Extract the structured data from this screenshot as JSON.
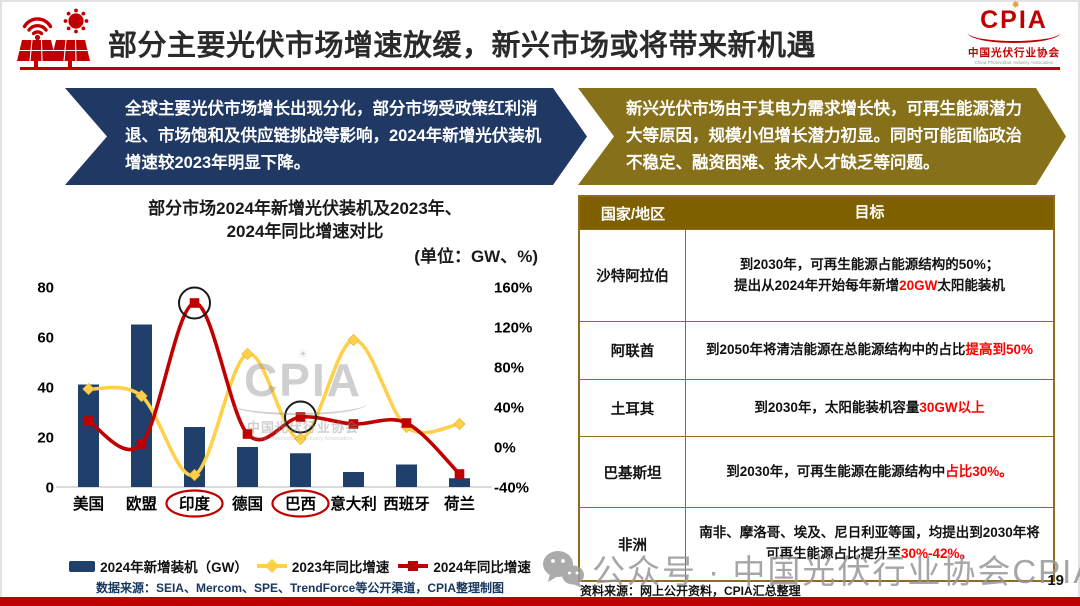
{
  "header": {
    "title": "部分主要光伏市场增速放缓，新兴市场或将带来新机遇",
    "logo": {
      "acronym": "CPIA",
      "org_cn": "中国光伏行业协会",
      "org_en": "China Photovoltaic Industry Association",
      "sun": "✹"
    }
  },
  "callouts": {
    "left": "全球主要光伏市场增长出现分化，部分市场受政策红利消退、市场饱和及供应链挑战等影响，2024年新增光伏装机增速较2023年明显下降。",
    "right": "新兴光伏市场由于其电力需求增长快，可再生能源潜力大等原因，规模小但增长潜力初显。同时可能面临政治不稳定、融资困难、技术人才缺乏等问题。"
  },
  "chart": {
    "title_line1": "部分市场2024年新增光伏装机及2023年、",
    "title_line2": "2024年同比增速对比",
    "unit_label": "(单位：GW、%)",
    "source": "数据来源：SEIA、Mercom、SPE、TrendForce等公开渠道，CPIA整理制图",
    "legend": [
      {
        "label": "2024年新增装机（GW）",
        "type": "bar",
        "color": "#20406B"
      },
      {
        "label": "2023年同比增速",
        "type": "line-diamond",
        "color": "#FFD04A"
      },
      {
        "label": "2024年同比增速",
        "type": "line-square",
        "color": "#C00000"
      }
    ]
  },
  "chart_data": {
    "type": "bar+line",
    "categories": [
      "美国",
      "欧盟",
      "印度",
      "德国",
      "巴西",
      "意大利",
      "西班牙",
      "荷兰"
    ],
    "bars": {
      "name": "2024年新增装机（GW）",
      "axis": "left",
      "color": "#20406B",
      "values": [
        41,
        65,
        24,
        16,
        13.5,
        6,
        9,
        3.5
      ]
    },
    "series": [
      {
        "name": "2023年同比增速",
        "axis": "right",
        "color": "#FFD04A",
        "marker": "diamond",
        "values": [
          58,
          51,
          -28,
          93,
          8,
          107,
          20,
          23
        ]
      },
      {
        "name": "2024年同比增速",
        "axis": "right",
        "color": "#C00000",
        "marker": "square",
        "values": [
          26,
          3,
          144,
          13,
          30,
          23,
          24,
          -27
        ]
      }
    ],
    "left_axis": {
      "min": 0,
      "max": 80,
      "ticks": [
        0,
        20,
        40,
        60,
        80
      ]
    },
    "right_axis": {
      "min": -40,
      "max": 160,
      "tick_values": [
        -40,
        0,
        40,
        80,
        120,
        160
      ],
      "suffix": "%"
    },
    "grid": false,
    "legend_position": "bottom",
    "circled_points": [
      {
        "series": 1,
        "index": 2
      },
      {
        "series": 1,
        "index": 4
      }
    ],
    "circled_categories": [
      "印度",
      "巴西"
    ]
  },
  "table": {
    "headers": [
      "国家/地区",
      "目标"
    ],
    "rows": [
      {
        "country": "沙特阿拉伯",
        "goal": [
          {
            "text": "到2030年，可再生能源占能源结构的50%；"
          },
          {
            "br": true
          },
          {
            "text": "提出从2024年开始每年新增"
          },
          {
            "text": "20GW",
            "red": true
          },
          {
            "text": "太阳能装机"
          }
        ]
      },
      {
        "country": "阿联酋",
        "goal": [
          {
            "text": "到2050年将清洁能源在总能源结构中的占比"
          },
          {
            "text": "提高到50%",
            "red": true
          }
        ]
      },
      {
        "country": "土耳其",
        "goal": [
          {
            "text": "到2030年，太阳能装机容量"
          },
          {
            "text": "30GW以上",
            "red": true
          }
        ]
      },
      {
        "country": "巴基斯坦",
        "goal": [
          {
            "text": "到2030年，可再生能源在能源结构中"
          },
          {
            "text": "占比30%。",
            "red": true
          }
        ]
      },
      {
        "country": "非洲",
        "goal": [
          {
            "text": "南非、摩洛哥、埃及、尼日利亚等国，均提出到2030年将"
          },
          {
            "br": true
          },
          {
            "text": "可再生能源占比提升至"
          },
          {
            "text": "30%-42%。",
            "red": true
          }
        ]
      }
    ],
    "source": "资料来源：网上公开资料，CPIA汇总整理"
  },
  "watermarks": {
    "chart_center": {
      "acronym": "CPIA",
      "sun": "☀",
      "org_cn": "中国光伏行业协会",
      "org_en": "China Photovoltaics Industry Association"
    },
    "bottom": "公众号 · 中国光伏行业协会CPIA"
  },
  "page_number": "19",
  "colors": {
    "navy": "#1F3864",
    "gold": "#87701A",
    "table_header": "#7F6000",
    "table_border": "#8F6C1E",
    "bar_navy": "#20406B",
    "line_yellow": "#FFD04A",
    "line_red": "#C00000",
    "accent_red": "#C00000",
    "highlight_red": "#FF0000"
  }
}
